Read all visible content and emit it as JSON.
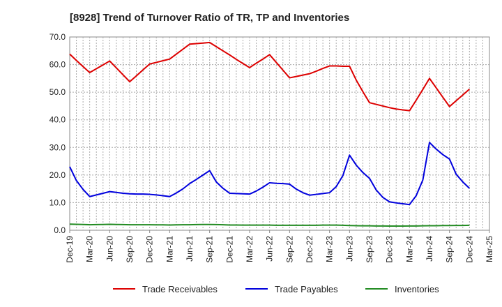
{
  "chart_data": {
    "type": "line",
    "title": "[8928]  Trend of Turnover Ratio of TR, TP and Inventories",
    "xlabel": "",
    "ylabel": "",
    "ylim": [
      0,
      70
    ],
    "yticks": [
      "0.0",
      "10.0",
      "20.0",
      "30.0",
      "40.0",
      "50.0",
      "60.0",
      "70.0"
    ],
    "grid": true,
    "legend_position": "bottom",
    "x_ticks": [
      "Dec-19",
      "Mar-20",
      "Jun-20",
      "Sep-20",
      "Dec-20",
      "Mar-21",
      "Jun-21",
      "Sep-21",
      "Dec-21",
      "Mar-22",
      "Jun-22",
      "Sep-22",
      "Dec-22",
      "Mar-23",
      "Jun-23",
      "Sep-23",
      "Dec-23",
      "Mar-24",
      "Jun-24",
      "Sep-24",
      "Dec-24",
      "Mar-25"
    ],
    "x": [
      "Dec-19",
      "Jan-20",
      "Feb-20",
      "Mar-20",
      "Apr-20",
      "May-20",
      "Jun-20",
      "Jul-20",
      "Aug-20",
      "Sep-20",
      "Oct-20",
      "Nov-20",
      "Dec-20",
      "Jan-21",
      "Feb-21",
      "Mar-21",
      "Apr-21",
      "May-21",
      "Jun-21",
      "Jul-21",
      "Aug-21",
      "Sep-21",
      "Oct-21",
      "Nov-21",
      "Dec-21",
      "Jan-22",
      "Feb-22",
      "Mar-22",
      "Apr-22",
      "May-22",
      "Jun-22",
      "Jul-22",
      "Aug-22",
      "Sep-22",
      "Oct-22",
      "Nov-22",
      "Dec-22",
      "Jan-23",
      "Feb-23",
      "Mar-23",
      "Apr-23",
      "May-23",
      "Jun-23",
      "Jul-23",
      "Aug-23",
      "Sep-23",
      "Oct-23",
      "Nov-23",
      "Dec-23",
      "Jan-24",
      "Feb-24",
      "Mar-24",
      "Apr-24",
      "May-24",
      "Jun-24",
      "Jul-24",
      "Aug-24",
      "Sep-24",
      "Oct-24",
      "Nov-24",
      "Dec-24"
    ],
    "series": [
      {
        "name": "Trade Receivables",
        "color": "#dd0000",
        "values": [
          63.8,
          61.5,
          59.3,
          57.1,
          58.5,
          59.9,
          61.3,
          58.8,
          56.3,
          53.8,
          55.9,
          58.1,
          60.2,
          60.8,
          61.4,
          62.0,
          63.8,
          65.6,
          67.4,
          67.6,
          67.8,
          68.0,
          66.5,
          65.0,
          63.5,
          61.9,
          60.4,
          58.9,
          60.5,
          62.0,
          63.6,
          60.8,
          58.0,
          55.2,
          55.7,
          56.2,
          56.7,
          57.6,
          58.6,
          59.5,
          59.5,
          59.4,
          59.4,
          54.4,
          50.2,
          46.2,
          45.6,
          45.0,
          44.4,
          43.9,
          43.6,
          43.3,
          47.1,
          51.0,
          55.0,
          51.6,
          48.2,
          44.8,
          46.9,
          49.0,
          51.1
        ]
      },
      {
        "name": "Trade Payables",
        "color": "#0000dd",
        "values": [
          23.0,
          18.0,
          14.8,
          12.2,
          12.8,
          13.4,
          14.0,
          13.7,
          13.4,
          13.2,
          13.1,
          13.1,
          13.0,
          12.8,
          12.5,
          12.2,
          13.5,
          15.0,
          16.9,
          18.4,
          20.0,
          21.6,
          17.5,
          15.2,
          13.4,
          13.3,
          13.2,
          13.1,
          14.2,
          15.6,
          17.2,
          17.0,
          16.9,
          16.7,
          14.9,
          13.6,
          12.7,
          13.0,
          13.3,
          13.6,
          15.8,
          19.8,
          27.2,
          23.6,
          20.9,
          18.8,
          14.6,
          11.9,
          10.3,
          9.9,
          9.6,
          9.3,
          12.5,
          18.2,
          31.8,
          29.4,
          27.4,
          25.8,
          20.3,
          17.5,
          15.2
        ]
      },
      {
        "name": "Inventories",
        "color": "#228b22",
        "values": [
          2.2,
          2.15,
          2.1,
          2.0,
          2.05,
          2.1,
          2.15,
          2.1,
          2.05,
          2.0,
          2.0,
          2.0,
          2.0,
          1.95,
          1.95,
          1.9,
          1.95,
          2.0,
          2.0,
          2.05,
          2.1,
          2.1,
          2.05,
          2.0,
          1.9,
          1.9,
          1.85,
          1.85,
          1.85,
          1.85,
          1.85,
          1.8,
          1.8,
          1.8,
          1.8,
          1.8,
          1.8,
          1.8,
          1.85,
          1.85,
          1.85,
          1.8,
          1.7,
          1.65,
          1.6,
          1.6,
          1.55,
          1.55,
          1.5,
          1.5,
          1.5,
          1.55,
          1.55,
          1.6,
          1.65,
          1.65,
          1.7,
          1.7,
          1.75,
          1.75,
          1.8
        ]
      }
    ]
  }
}
